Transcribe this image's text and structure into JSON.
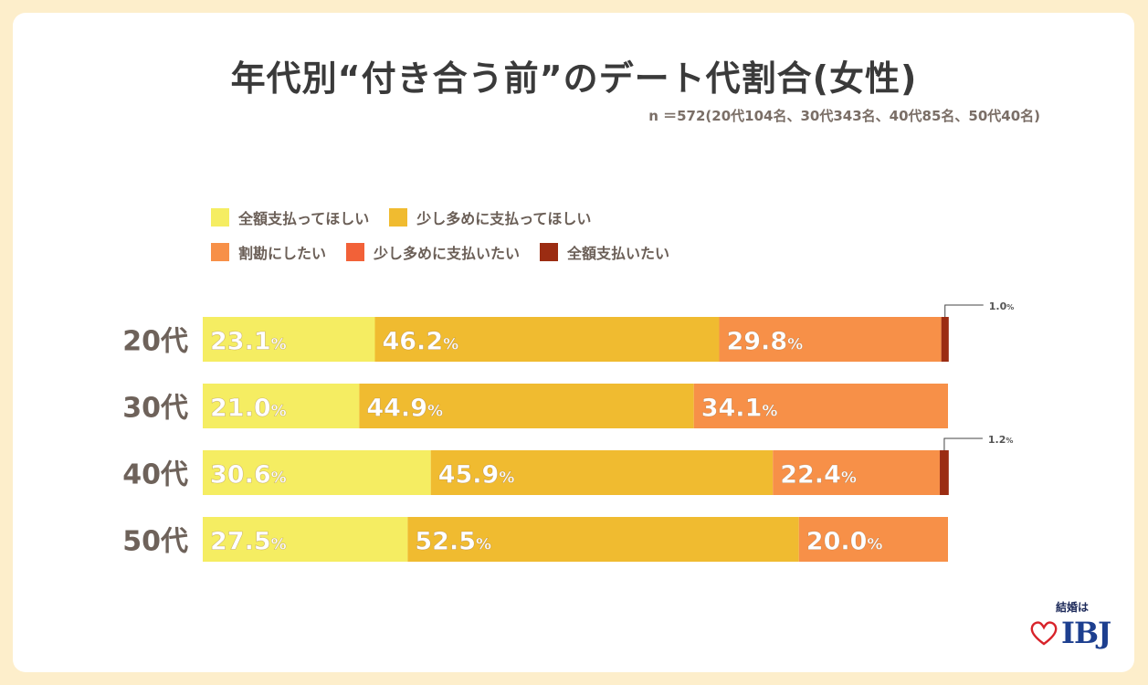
{
  "header": {
    "title": "年代別“付き合う前”のデート代割合(女性)",
    "sample": "n ＝572(20代104名、30代343名、40代85名、50代40名)"
  },
  "legend": [
    {
      "label": "全額支払ってほしい",
      "color": "#f5ed62"
    },
    {
      "label": "少し多めに支払ってほしい",
      "color": "#f0bb30"
    },
    {
      "label": "割勘にしたい",
      "color": "#f79048"
    },
    {
      "label": "少し多めに支払いたい",
      "color": "#f26138"
    },
    {
      "label": "全額支払いたい",
      "color": "#9b2c12"
    }
  ],
  "chart_data": {
    "type": "bar",
    "orientation": "horizontal",
    "stacked": true,
    "unit": "%",
    "categories": [
      "20代",
      "30代",
      "40代",
      "50代"
    ],
    "series": [
      {
        "name": "全額支払ってほしい",
        "values": [
          23.1,
          21.0,
          30.6,
          27.5
        ]
      },
      {
        "name": "少し多めに支払ってほしい",
        "values": [
          46.2,
          44.9,
          45.9,
          52.5
        ]
      },
      {
        "name": "割勘にしたい",
        "values": [
          29.8,
          34.1,
          22.4,
          20.0
        ]
      },
      {
        "name": "少し多めに支払いたい",
        "values": [
          0,
          0,
          0,
          0
        ]
      },
      {
        "name": "全額支払いたい",
        "values": [
          1.0,
          0,
          1.2,
          0
        ]
      }
    ],
    "data_labels": [
      [
        "23.1",
        "46.2",
        "29.8",
        "",
        "1.0"
      ],
      [
        "21.0",
        "44.9",
        "34.1",
        "",
        ""
      ],
      [
        "30.6",
        "45.9",
        "22.4",
        "",
        "1.2"
      ],
      [
        "27.5",
        "52.5",
        "20.0",
        "",
        ""
      ]
    ],
    "xlim": [
      0,
      100
    ],
    "grid": false,
    "legend_position": "top-left"
  },
  "logo": {
    "top_text": "結婚は",
    "main_text": "IBJ",
    "heart_color": "#d8232a"
  }
}
